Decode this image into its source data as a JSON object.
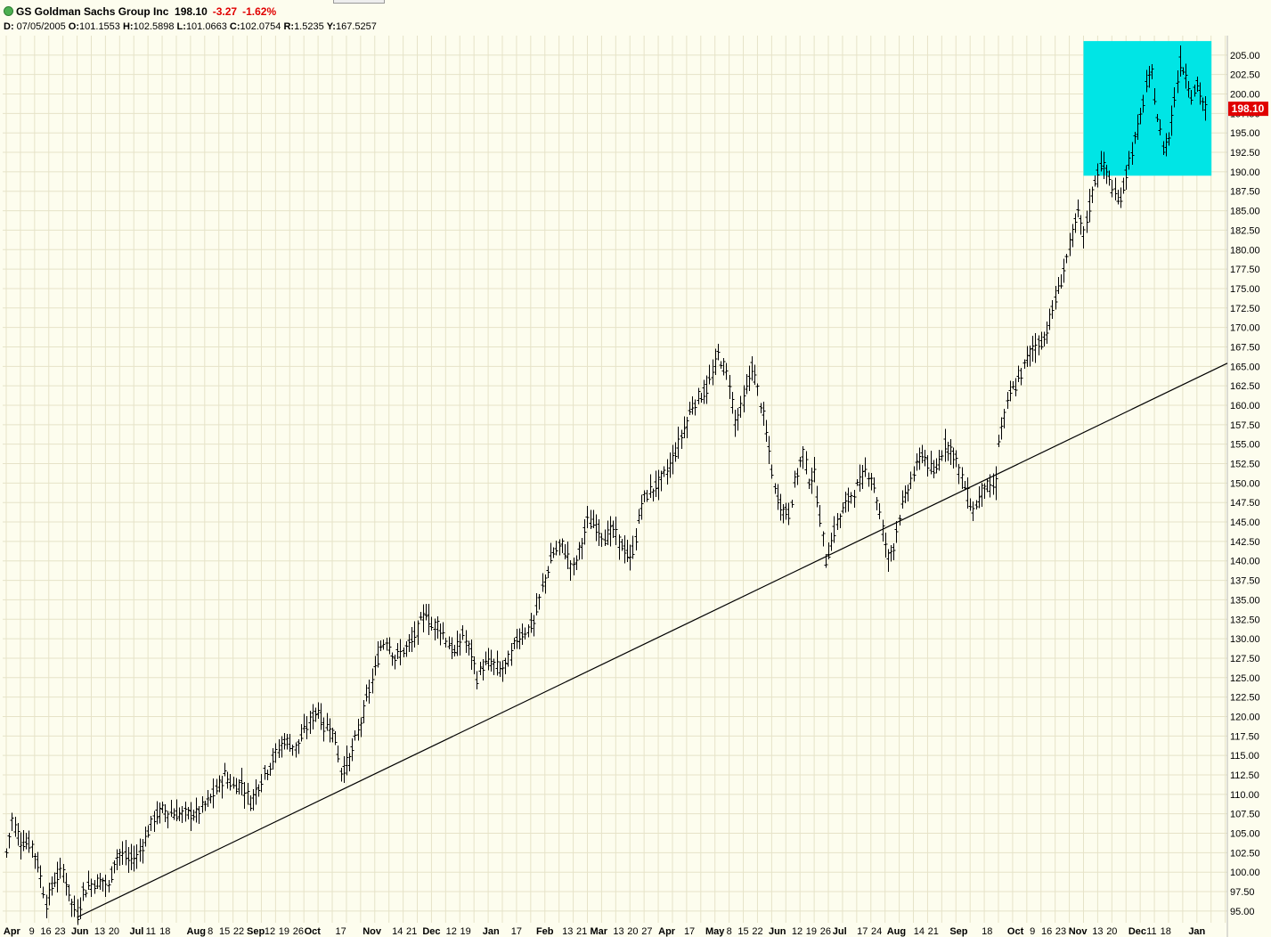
{
  "header": {
    "symbol_name": "GS Goldman Sachs Group Inc",
    "last": "198.10",
    "change": "-3.27",
    "change_pct": "-1.62%",
    "ohlc": [
      {
        "label": "D:",
        "value": "07/05/2005"
      },
      {
        "label": "O:",
        "value": "101.1553"
      },
      {
        "label": "H:",
        "value": "102.5898"
      },
      {
        "label": "L:",
        "value": "101.0663"
      },
      {
        "label": "C:",
        "value": "102.0754"
      },
      {
        "label": "R:",
        "value": "1.5235"
      },
      {
        "label": "Y:",
        "value": "167.5257"
      }
    ]
  },
  "colors": {
    "background": "#fdfdee",
    "grid": "#e6e3c8",
    "bars": "#000000",
    "highlight_box": "#00e5e5",
    "price_tag": "#e00000",
    "negative_change": "#e00000"
  },
  "chart_data": {
    "type": "ohlc",
    "title": "GS Goldman Sachs Group Inc",
    "ylim": [
      93.5,
      207.5
    ],
    "y_ticks": [
      "95.00",
      "97.50",
      "100.00",
      "102.50",
      "105.00",
      "107.50",
      "110.00",
      "112.50",
      "115.00",
      "117.50",
      "120.00",
      "122.50",
      "125.00",
      "127.50",
      "130.00",
      "132.50",
      "135.00",
      "137.50",
      "140.00",
      "142.50",
      "145.00",
      "147.50",
      "150.00",
      "152.50",
      "155.00",
      "157.50",
      "160.00",
      "162.50",
      "165.00",
      "167.50",
      "170.00",
      "172.50",
      "175.00",
      "177.50",
      "180.00",
      "182.50",
      "185.00",
      "187.50",
      "190.00",
      "192.50",
      "195.00",
      "197.50",
      "200.00",
      "202.50",
      "205.00"
    ],
    "last_price_label": "198.10",
    "last_price": 198.1,
    "x_labels": [
      {
        "t": "Apr",
        "i": 2,
        "bold": true
      },
      {
        "t": "9",
        "i": 9
      },
      {
        "t": "16",
        "i": 14
      },
      {
        "t": "23",
        "i": 19
      },
      {
        "t": "Jun",
        "i": 26,
        "bold": true
      },
      {
        "t": "13",
        "i": 33
      },
      {
        "t": "20",
        "i": 38
      },
      {
        "t": "Jul",
        "i": 46,
        "bold": true
      },
      {
        "t": "11",
        "i": 51
      },
      {
        "t": "18",
        "i": 56
      },
      {
        "t": "Aug",
        "i": 67,
        "bold": true
      },
      {
        "t": "8",
        "i": 72
      },
      {
        "t": "15",
        "i": 77
      },
      {
        "t": "22",
        "i": 82
      },
      {
        "t": "Sep",
        "i": 88,
        "bold": true
      },
      {
        "t": "12",
        "i": 93
      },
      {
        "t": "19",
        "i": 98
      },
      {
        "t": "26",
        "i": 103
      },
      {
        "t": "Oct",
        "i": 108,
        "bold": true
      },
      {
        "t": "17",
        "i": 118
      },
      {
        "t": "Nov",
        "i": 129,
        "bold": true
      },
      {
        "t": "14",
        "i": 138
      },
      {
        "t": "21",
        "i": 143
      },
      {
        "t": "Dec",
        "i": 150,
        "bold": true
      },
      {
        "t": "12",
        "i": 157
      },
      {
        "t": "19",
        "i": 162
      },
      {
        "t": "Jan",
        "i": 171,
        "bold": true
      },
      {
        "t": "17",
        "i": 180
      },
      {
        "t": "Feb",
        "i": 190,
        "bold": true
      },
      {
        "t": "13",
        "i": 198
      },
      {
        "t": "21",
        "i": 203
      },
      {
        "t": "Mar",
        "i": 209,
        "bold": true
      },
      {
        "t": "13",
        "i": 216
      },
      {
        "t": "20",
        "i": 221
      },
      {
        "t": "27",
        "i": 226
      },
      {
        "t": "Apr",
        "i": 233,
        "bold": true
      },
      {
        "t": "17",
        "i": 241
      },
      {
        "t": "May",
        "i": 250,
        "bold": true
      },
      {
        "t": "8",
        "i": 255
      },
      {
        "t": "15",
        "i": 260
      },
      {
        "t": "22",
        "i": 265
      },
      {
        "t": "Jun",
        "i": 272,
        "bold": true
      },
      {
        "t": "12",
        "i": 279
      },
      {
        "t": "19",
        "i": 284
      },
      {
        "t": "26",
        "i": 289
      },
      {
        "t": "Jul",
        "i": 294,
        "bold": true
      },
      {
        "t": "17",
        "i": 302
      },
      {
        "t": "24",
        "i": 307
      },
      {
        "t": "Aug",
        "i": 314,
        "bold": true
      },
      {
        "t": "14",
        "i": 322
      },
      {
        "t": "21",
        "i": 327
      },
      {
        "t": "Sep",
        "i": 336,
        "bold": true
      },
      {
        "t": "18",
        "i": 346
      },
      {
        "t": "Oct",
        "i": 356,
        "bold": true
      },
      {
        "t": "9",
        "i": 362
      },
      {
        "t": "16",
        "i": 367
      },
      {
        "t": "23",
        "i": 372
      },
      {
        "t": "Nov",
        "i": 378,
        "bold": true
      },
      {
        "t": "13",
        "i": 385
      },
      {
        "t": "20",
        "i": 390
      },
      {
        "t": "Dec",
        "i": 399,
        "bold": true
      },
      {
        "t": "11",
        "i": 404
      },
      {
        "t": "18",
        "i": 409
      },
      {
        "t": "Jan",
        "i": 420,
        "bold": true
      }
    ],
    "anchors": [
      [
        0,
        102.5
      ],
      [
        2,
        106.8
      ],
      [
        5,
        104.0
      ],
      [
        9,
        103.5
      ],
      [
        11,
        101.0
      ],
      [
        14,
        96.0
      ],
      [
        17,
        99.0
      ],
      [
        20,
        100.2
      ],
      [
        23,
        96.0
      ],
      [
        25,
        94.5
      ],
      [
        27,
        97.5
      ],
      [
        30,
        98.5
      ],
      [
        34,
        99.0
      ],
      [
        36,
        98.0
      ],
      [
        38,
        101.5
      ],
      [
        40,
        102.5
      ],
      [
        43,
        101.5
      ],
      [
        46,
        102.0
      ],
      [
        48,
        103.5
      ],
      [
        52,
        107.0
      ],
      [
        55,
        108.0
      ],
      [
        59,
        107.5
      ],
      [
        63,
        107.5
      ],
      [
        67,
        107.5
      ],
      [
        71,
        109.0
      ],
      [
        74,
        110.5
      ],
      [
        77,
        112.5
      ],
      [
        80,
        111.0
      ],
      [
        83,
        111.5
      ],
      [
        86,
        109.0
      ],
      [
        90,
        112.0
      ],
      [
        94,
        114.5
      ],
      [
        98,
        117.0
      ],
      [
        102,
        116.0
      ],
      [
        105,
        118.0
      ],
      [
        108,
        120.0
      ],
      [
        110,
        121.0
      ],
      [
        112,
        118.5
      ],
      [
        114,
        119.0
      ],
      [
        116,
        117.0
      ],
      [
        118,
        113.0
      ],
      [
        121,
        114.5
      ],
      [
        124,
        118.0
      ],
      [
        127,
        122.0
      ],
      [
        130,
        126.0
      ],
      [
        132,
        129.0
      ],
      [
        134,
        130.0
      ],
      [
        137,
        127.5
      ],
      [
        140,
        128.5
      ],
      [
        143,
        129.5
      ],
      [
        146,
        132.0
      ],
      [
        148,
        133.5
      ],
      [
        150,
        131.5
      ],
      [
        152,
        132.0
      ],
      [
        155,
        130.0
      ],
      [
        158,
        128.0
      ],
      [
        161,
        130.5
      ],
      [
        164,
        128.0
      ],
      [
        166,
        125.0
      ],
      [
        168,
        126.5
      ],
      [
        171,
        127.0
      ],
      [
        174,
        126.0
      ],
      [
        176,
        126.5
      ],
      [
        178,
        128.0
      ],
      [
        180,
        130.0
      ],
      [
        183,
        131.0
      ],
      [
        186,
        132.0
      ],
      [
        189,
        136.5
      ],
      [
        191,
        139.0
      ],
      [
        193,
        141.0
      ],
      [
        196,
        142.0
      ],
      [
        198,
        140.5
      ],
      [
        200,
        139.0
      ],
      [
        203,
        142.5
      ],
      [
        205,
        145.0
      ],
      [
        208,
        144.5
      ],
      [
        211,
        143.0
      ],
      [
        214,
        144.0
      ],
      [
        216,
        142.5
      ],
      [
        218,
        141.5
      ],
      [
        220,
        140.0
      ],
      [
        222,
        143.0
      ],
      [
        224,
        147.5
      ],
      [
        227,
        149.0
      ],
      [
        230,
        150.0
      ],
      [
        233,
        151.5
      ],
      [
        236,
        154.0
      ],
      [
        239,
        157.0
      ],
      [
        242,
        160.0
      ],
      [
        244,
        161.0
      ],
      [
        247,
        162.0
      ],
      [
        249,
        164.0
      ],
      [
        251,
        166.5
      ],
      [
        253,
        165.0
      ],
      [
        255,
        163.0
      ],
      [
        257,
        158.0
      ],
      [
        259,
        159.5
      ],
      [
        261,
        162.0
      ],
      [
        263,
        165.0
      ],
      [
        265,
        162.0
      ],
      [
        267,
        158.5
      ],
      [
        269,
        154.0
      ],
      [
        271,
        149.0
      ],
      [
        274,
        146.5
      ],
      [
        276,
        146.0
      ],
      [
        278,
        150.0
      ],
      [
        281,
        154.0
      ],
      [
        283,
        150.5
      ],
      [
        285,
        151.0
      ],
      [
        287,
        145.5
      ],
      [
        289,
        140.0
      ],
      [
        291,
        142.5
      ],
      [
        293,
        145.0
      ],
      [
        295,
        146.5
      ],
      [
        298,
        148.5
      ],
      [
        301,
        150.0
      ],
      [
        303,
        151.5
      ],
      [
        305,
        151.0
      ],
      [
        307,
        148.0
      ],
      [
        309,
        144.0
      ],
      [
        311,
        140.5
      ],
      [
        313,
        142.0
      ],
      [
        315,
        146.0
      ],
      [
        317,
        148.0
      ],
      [
        319,
        150.5
      ],
      [
        321,
        152.0
      ],
      [
        323,
        154.0
      ],
      [
        325,
        152.5
      ],
      [
        327,
        151.0
      ],
      [
        329,
        153.0
      ],
      [
        331,
        155.0
      ],
      [
        333,
        154.5
      ],
      [
        335,
        153.0
      ],
      [
        337,
        150.5
      ],
      [
        339,
        148.5
      ],
      [
        341,
        146.5
      ],
      [
        343,
        148.0
      ],
      [
        345,
        150.0
      ],
      [
        347,
        149.0
      ],
      [
        349,
        150.0
      ],
      [
        350,
        155.5
      ],
      [
        352,
        158.5
      ],
      [
        354,
        161.5
      ],
      [
        356,
        162.5
      ],
      [
        358,
        164.0
      ],
      [
        360,
        166.0
      ],
      [
        362,
        167.5
      ],
      [
        364,
        168.0
      ],
      [
        366,
        168.5
      ],
      [
        368,
        171.0
      ],
      [
        370,
        173.5
      ],
      [
        372,
        176.0
      ],
      [
        374,
        179.0
      ],
      [
        376,
        182.0
      ],
      [
        378,
        184.5
      ],
      [
        380,
        182.0
      ],
      [
        382,
        185.5
      ],
      [
        384,
        189.0
      ],
      [
        386,
        191.0
      ],
      [
        388,
        190.0
      ],
      [
        390,
        188.0
      ],
      [
        392,
        186.0
      ],
      [
        394,
        188.0
      ],
      [
        396,
        191.5
      ],
      [
        398,
        194.0
      ],
      [
        400,
        197.0
      ],
      [
        402,
        201.0
      ],
      [
        404,
        202.5
      ],
      [
        406,
        197.0
      ],
      [
        408,
        193.0
      ],
      [
        410,
        194.5
      ],
      [
        412,
        199.5
      ],
      [
        414,
        204.0
      ],
      [
        416,
        202.5
      ],
      [
        418,
        200.0
      ],
      [
        420,
        201.0
      ],
      [
        422,
        199.0
      ],
      [
        423,
        198.1
      ]
    ]
  }
}
